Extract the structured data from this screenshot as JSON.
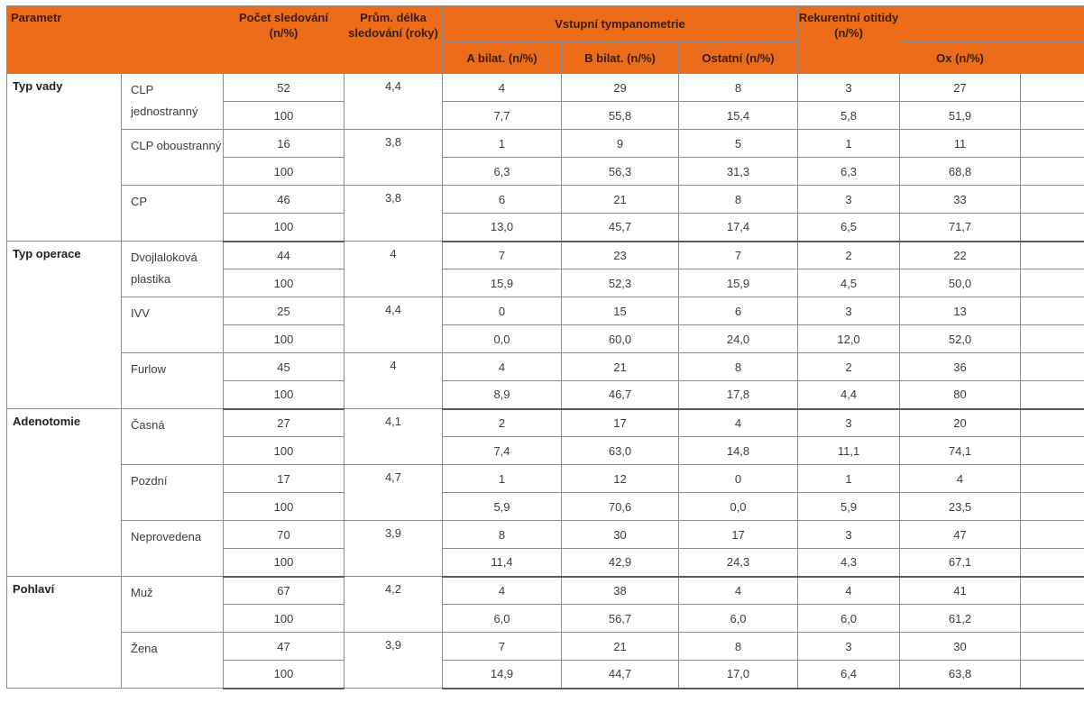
{
  "header": {
    "parametr": "Parametr",
    "pocet": "Počet sledování (n/%)",
    "prum": "Prům. délka sledování (roky)",
    "vstupni": "Vstupní tympanometrie",
    "a_bilat": "A bilat. (n/%)",
    "b_bilat": "B bilat. (n/%)",
    "ostatni": "Ostatní (n/%)",
    "rekurentni": "Rekurentní otitidy (n/%)",
    "ox": "Ox (n/%)"
  },
  "groups": [
    {
      "name": "Typ vady",
      "rows": [
        {
          "label": "CLP jednostranný",
          "duration": "4,4",
          "count": [
            "52",
            "100"
          ],
          "a": [
            "4",
            "7,7"
          ],
          "b": [
            "29",
            "55,8"
          ],
          "other": [
            "8",
            "15,4"
          ],
          "rec": [
            "3",
            "5,8"
          ],
          "ox": [
            "27",
            "51,9"
          ]
        },
        {
          "label": "CLP oboustranný",
          "duration": "3,8",
          "count": [
            "16",
            "100"
          ],
          "a": [
            "1",
            "6,3"
          ],
          "b": [
            "9",
            "56,3"
          ],
          "other": [
            "5",
            "31,3"
          ],
          "rec": [
            "1",
            "6,3"
          ],
          "ox": [
            "11",
            "68,8"
          ]
        },
        {
          "label": "CP",
          "duration": "3,8",
          "count": [
            "46",
            "100"
          ],
          "a": [
            "6",
            "13,0"
          ],
          "b": [
            "21",
            "45,7"
          ],
          "other": [
            "8",
            "17,4"
          ],
          "rec": [
            "3",
            "6,5"
          ],
          "ox": [
            "33",
            "71,7"
          ]
        }
      ]
    },
    {
      "name": "Typ operace",
      "rows": [
        {
          "label": "Dvojlaloková plastika",
          "duration": "4",
          "count": [
            "44",
            "100"
          ],
          "a": [
            "7",
            "15,9"
          ],
          "b": [
            "23",
            "52,3"
          ],
          "other": [
            "7",
            "15,9"
          ],
          "rec": [
            "2",
            "4,5"
          ],
          "ox": [
            "22",
            "50,0"
          ]
        },
        {
          "label": "IVV",
          "duration": "4,4",
          "count": [
            "25",
            "100"
          ],
          "a": [
            "0",
            "0,0"
          ],
          "b": [
            "15",
            "60,0"
          ],
          "other": [
            "6",
            "24,0"
          ],
          "rec": [
            "3",
            "12,0"
          ],
          "ox": [
            "13",
            "52,0"
          ]
        },
        {
          "label": "Furlow",
          "duration": "4",
          "count": [
            "45",
            "100"
          ],
          "a": [
            "4",
            "8,9"
          ],
          "b": [
            "21",
            "46,7"
          ],
          "other": [
            "8",
            "17,8"
          ],
          "rec": [
            "2",
            "4,4"
          ],
          "ox": [
            "36",
            "80"
          ]
        }
      ]
    },
    {
      "name": "Adenotomie",
      "rows": [
        {
          "label": "Časná",
          "duration": "4,1",
          "count": [
            "27",
            "100"
          ],
          "a": [
            "2",
            "7,4"
          ],
          "b": [
            "17",
            "63,0"
          ],
          "other": [
            "4",
            "14,8"
          ],
          "rec": [
            "3",
            "11,1"
          ],
          "ox": [
            "20",
            "74,1"
          ]
        },
        {
          "label": "Pozdní",
          "duration": "4,7",
          "count": [
            "17",
            "100"
          ],
          "a": [
            "1",
            "5,9"
          ],
          "b": [
            "12",
            "70,6"
          ],
          "other": [
            "0",
            "0,0"
          ],
          "rec": [
            "1",
            "5,9"
          ],
          "ox": [
            "4",
            "23,5"
          ]
        },
        {
          "label": "Neprovedena",
          "duration": "3,9",
          "count": [
            "70",
            "100"
          ],
          "a": [
            "8",
            "11,4"
          ],
          "b": [
            "30",
            "42,9"
          ],
          "other": [
            "17",
            "24,3"
          ],
          "rec": [
            "3",
            "4,3"
          ],
          "ox": [
            "47",
            "67,1"
          ]
        }
      ]
    },
    {
      "name": "Pohlaví",
      "rows": [
        {
          "label": "Muž",
          "duration": "4,2",
          "count": [
            "67",
            "100"
          ],
          "a": [
            "4",
            "6,0"
          ],
          "b": [
            "38",
            "56,7"
          ],
          "other": [
            "4",
            "6,0"
          ],
          "rec": [
            "4",
            "6,0"
          ],
          "ox": [
            "41",
            "61,2"
          ]
        },
        {
          "label": "Žena",
          "duration": "3,9",
          "count": [
            "47",
            "100"
          ],
          "a": [
            "7",
            "14,9"
          ],
          "b": [
            "21",
            "44,7"
          ],
          "other": [
            "8",
            "17,0"
          ],
          "rec": [
            "3",
            "6,4"
          ],
          "ox": [
            "30",
            "63,8"
          ]
        }
      ]
    }
  ]
}
